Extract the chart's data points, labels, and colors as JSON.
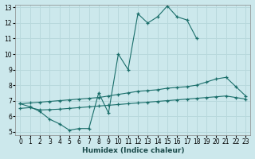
{
  "xlabel": "Humidex (Indice chaleur)",
  "bg_color": "#cce8ec",
  "grid_color": "#b8d8dc",
  "line_color": "#1a6e6a",
  "xlim": [
    -0.5,
    23.5
  ],
  "ylim": [
    4.8,
    13.2
  ],
  "xticks": [
    0,
    1,
    2,
    3,
    4,
    5,
    6,
    7,
    8,
    9,
    10,
    11,
    12,
    13,
    14,
    15,
    16,
    17,
    18,
    19,
    20,
    21,
    22,
    23
  ],
  "yticks": [
    5,
    6,
    7,
    8,
    9,
    10,
    11,
    12,
    13
  ],
  "line1_x": [
    0,
    1,
    2,
    3,
    4,
    5,
    6,
    7,
    8,
    9,
    10,
    11,
    12,
    13,
    14,
    15,
    16,
    17,
    18
  ],
  "line1_y": [
    6.8,
    6.6,
    6.3,
    5.8,
    5.5,
    5.1,
    5.2,
    5.2,
    7.5,
    6.2,
    10.0,
    9.0,
    12.6,
    12.0,
    12.4,
    13.1,
    12.4,
    12.2,
    11.0
  ],
  "line2_x": [
    0,
    1,
    2,
    3,
    4,
    5,
    6,
    7,
    8,
    9,
    10,
    11,
    12,
    13,
    14,
    15,
    16,
    17,
    18,
    19,
    20,
    21,
    22,
    23
  ],
  "line2_y": [
    6.8,
    6.85,
    6.9,
    6.95,
    7.0,
    7.05,
    7.1,
    7.15,
    7.2,
    7.3,
    7.4,
    7.5,
    7.6,
    7.65,
    7.7,
    7.8,
    7.85,
    7.9,
    8.0,
    8.2,
    8.4,
    8.5,
    7.9,
    7.3
  ],
  "line3_x": [
    0,
    1,
    2,
    3,
    4,
    5,
    6,
    7,
    8,
    9,
    10,
    11,
    12,
    13,
    14,
    15,
    16,
    17,
    18,
    19,
    20,
    21,
    22,
    23
  ],
  "line3_y": [
    6.5,
    6.55,
    6.4,
    6.42,
    6.45,
    6.5,
    6.55,
    6.6,
    6.65,
    6.7,
    6.75,
    6.8,
    6.85,
    6.9,
    6.95,
    7.0,
    7.05,
    7.1,
    7.15,
    7.2,
    7.25,
    7.3,
    7.2,
    7.1
  ]
}
